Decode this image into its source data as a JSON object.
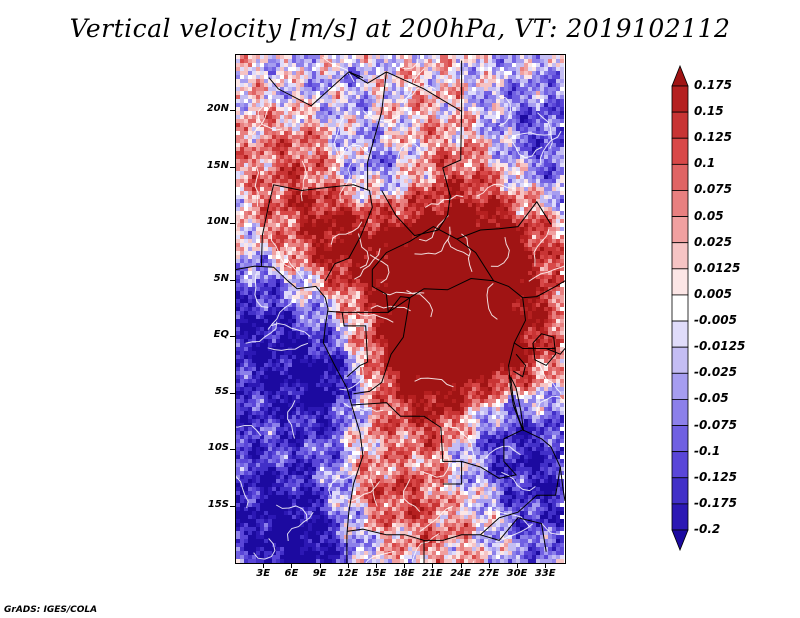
{
  "title": "Vertical velocity [m/s] at 200hPa, VT: 2019102112",
  "credit": "GrADS: IGES/COLA",
  "map": {
    "latitude_range": [
      -20,
      25
    ],
    "longitude_range": [
      0,
      35
    ],
    "lat_labels": [
      {
        "text": "20N",
        "lat": 20
      },
      {
        "text": "15N",
        "lat": 15
      },
      {
        "text": "10N",
        "lat": 10
      },
      {
        "text": "5N",
        "lat": 5
      },
      {
        "text": "EQ",
        "lat": 0
      },
      {
        "text": "5S",
        "lat": -5
      },
      {
        "text": "10S",
        "lat": -10
      },
      {
        "text": "15S",
        "lat": -15
      }
    ],
    "lon_labels": [
      {
        "text": "3E",
        "lon": 3
      },
      {
        "text": "6E",
        "lon": 6
      },
      {
        "text": "9E",
        "lon": 9
      },
      {
        "text": "12E",
        "lon": 12
      },
      {
        "text": "15E",
        "lon": 15
      },
      {
        "text": "18E",
        "lon": 18
      },
      {
        "text": "21E",
        "lon": 21
      },
      {
        "text": "24E",
        "lon": 24
      },
      {
        "text": "27E",
        "lon": 27
      },
      {
        "text": "30E",
        "lon": 30
      },
      {
        "text": "33E",
        "lon": 33
      }
    ]
  },
  "colorbar": {
    "labels": [
      "0.175",
      "0.15",
      "0.125",
      "0.1",
      "0.075",
      "0.05",
      "0.025",
      "0.0125",
      "0.005",
      "-0.005",
      "-0.0125",
      "-0.025",
      "-0.05",
      "-0.075",
      "-0.1",
      "-0.125",
      "-0.175",
      "-0.2"
    ],
    "colors": [
      "#a01414",
      "#b52020",
      "#c83434",
      "#d84848",
      "#e06464",
      "#e88080",
      "#f0a0a0",
      "#f6c4c4",
      "#fce6e6",
      "#ffffff",
      "#e0dcfa",
      "#c4bdf3",
      "#a69df0",
      "#8c80ea",
      "#7060e2",
      "#5a46d8",
      "#4230c8",
      "#2c18b4",
      "#1c0aa0"
    ]
  }
}
